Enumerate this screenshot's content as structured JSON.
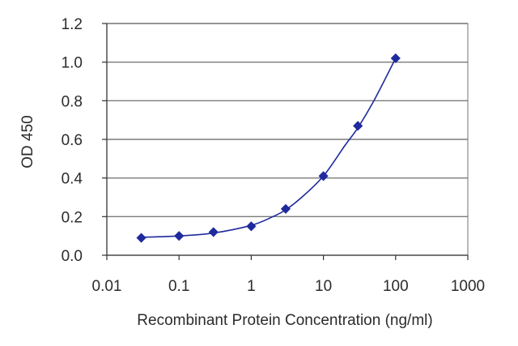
{
  "chart_data": {
    "type": "line",
    "xlabel": "Recombinant Protein Concentration (ng/ml)",
    "ylabel": "OD 450",
    "xscale": "log",
    "xlim": [
      0.01,
      1000
    ],
    "ylim": [
      0,
      1.2
    ],
    "x_ticks": [
      0.01,
      0.1,
      1,
      10,
      100,
      1000
    ],
    "x_tick_labels": [
      "0.01",
      "0.1",
      "1",
      "10",
      "100",
      "1000"
    ],
    "y_ticks": [
      0,
      0.2,
      0.4,
      0.6,
      0.8,
      1.0,
      1.2
    ],
    "y_tick_labels": [
      "0.0",
      "0.2",
      "0.4",
      "0.6",
      "0.8",
      "1.0",
      "1.2"
    ],
    "grid": "horizontal",
    "legend": "none",
    "series": [
      {
        "color": "#1f2a9c",
        "marker": "diamond",
        "points": [
          {
            "x": 0.03,
            "y": 0.09
          },
          {
            "x": 0.1,
            "y": 0.1
          },
          {
            "x": 0.3,
            "y": 0.12
          },
          {
            "x": 1,
            "y": 0.15
          },
          {
            "x": 3,
            "y": 0.24
          },
          {
            "x": 10,
            "y": 0.41
          },
          {
            "x": 30,
            "y": 0.67
          },
          {
            "x": 100,
            "y": 1.02
          }
        ],
        "curve": [
          {
            "x": 0.03,
            "y": 0.093
          },
          {
            "x": 0.1,
            "y": 0.1
          },
          {
            "x": 0.3,
            "y": 0.115
          },
          {
            "x": 1,
            "y": 0.155
          },
          {
            "x": 2,
            "y": 0.2
          },
          {
            "x": 3,
            "y": 0.235
          },
          {
            "x": 5,
            "y": 0.3
          },
          {
            "x": 10,
            "y": 0.41
          },
          {
            "x": 20,
            "y": 0.57
          },
          {
            "x": 30,
            "y": 0.66
          },
          {
            "x": 50,
            "y": 0.8
          },
          {
            "x": 100,
            "y": 1.02
          }
        ]
      }
    ]
  }
}
